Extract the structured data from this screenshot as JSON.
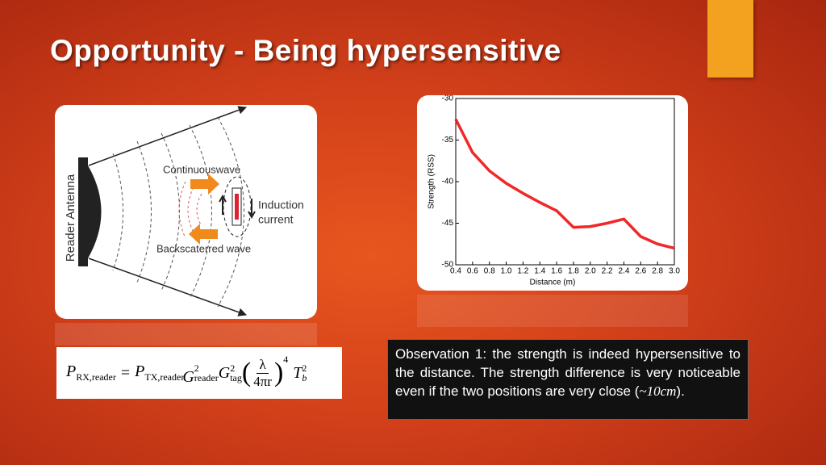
{
  "title": "Opportunity - Being hypersensitive",
  "diagram": {
    "antenna": "Reader Antenna",
    "continuous": "Continuouswave",
    "induction": [
      "Induction",
      "current"
    ],
    "backscatter": "Backscaterred wave"
  },
  "formula": {
    "p": "P",
    "rx": "RX,reader",
    "eq": "=",
    "tx": "TX,reader",
    "g": "G",
    "two": "2",
    "reader": "reader",
    "tag": "tag",
    "lambda": "λ",
    "den": "4πr",
    "four": "4",
    "t": "T",
    "b": "b"
  },
  "chart_data": {
    "type": "line",
    "xlabel": "Distance (m)",
    "ylabel": "Strength (RSS)",
    "x": [
      0.4,
      0.6,
      0.8,
      1.0,
      1.2,
      1.4,
      1.6,
      1.8,
      2.0,
      2.2,
      2.4,
      2.6,
      2.8,
      3.0
    ],
    "series": [
      {
        "color": "#ee1111",
        "values": [
          -32.5,
          -36.5,
          -38.7,
          -40.2,
          -41.4,
          -42.5,
          -43.5,
          -45.5,
          -45.4,
          -45.0,
          -44.5,
          -46.6,
          -47.5,
          -48.0
        ]
      }
    ],
    "xlim": [
      0.4,
      3.0
    ],
    "ylim": [
      -50,
      -30
    ],
    "xticks": [
      0.4,
      0.6,
      0.8,
      {
        "value": 1,
        "label": "1.0"
      },
      1.2,
      1.4,
      1.6,
      1.8,
      {
        "value": 2,
        "label": "2.0"
      },
      2.2,
      2.4,
      2.6,
      2.8,
      {
        "value": 3,
        "label": "3.0"
      }
    ],
    "yticks": [
      -50,
      -45,
      -40,
      -35,
      -30
    ]
  },
  "observation": {
    "text": "Observation 1: the strength is indeed hypersensitive to the distance. The strength difference is very noticeable even if the two positions are very close (",
    "math": "~10cm",
    "end": ")."
  }
}
